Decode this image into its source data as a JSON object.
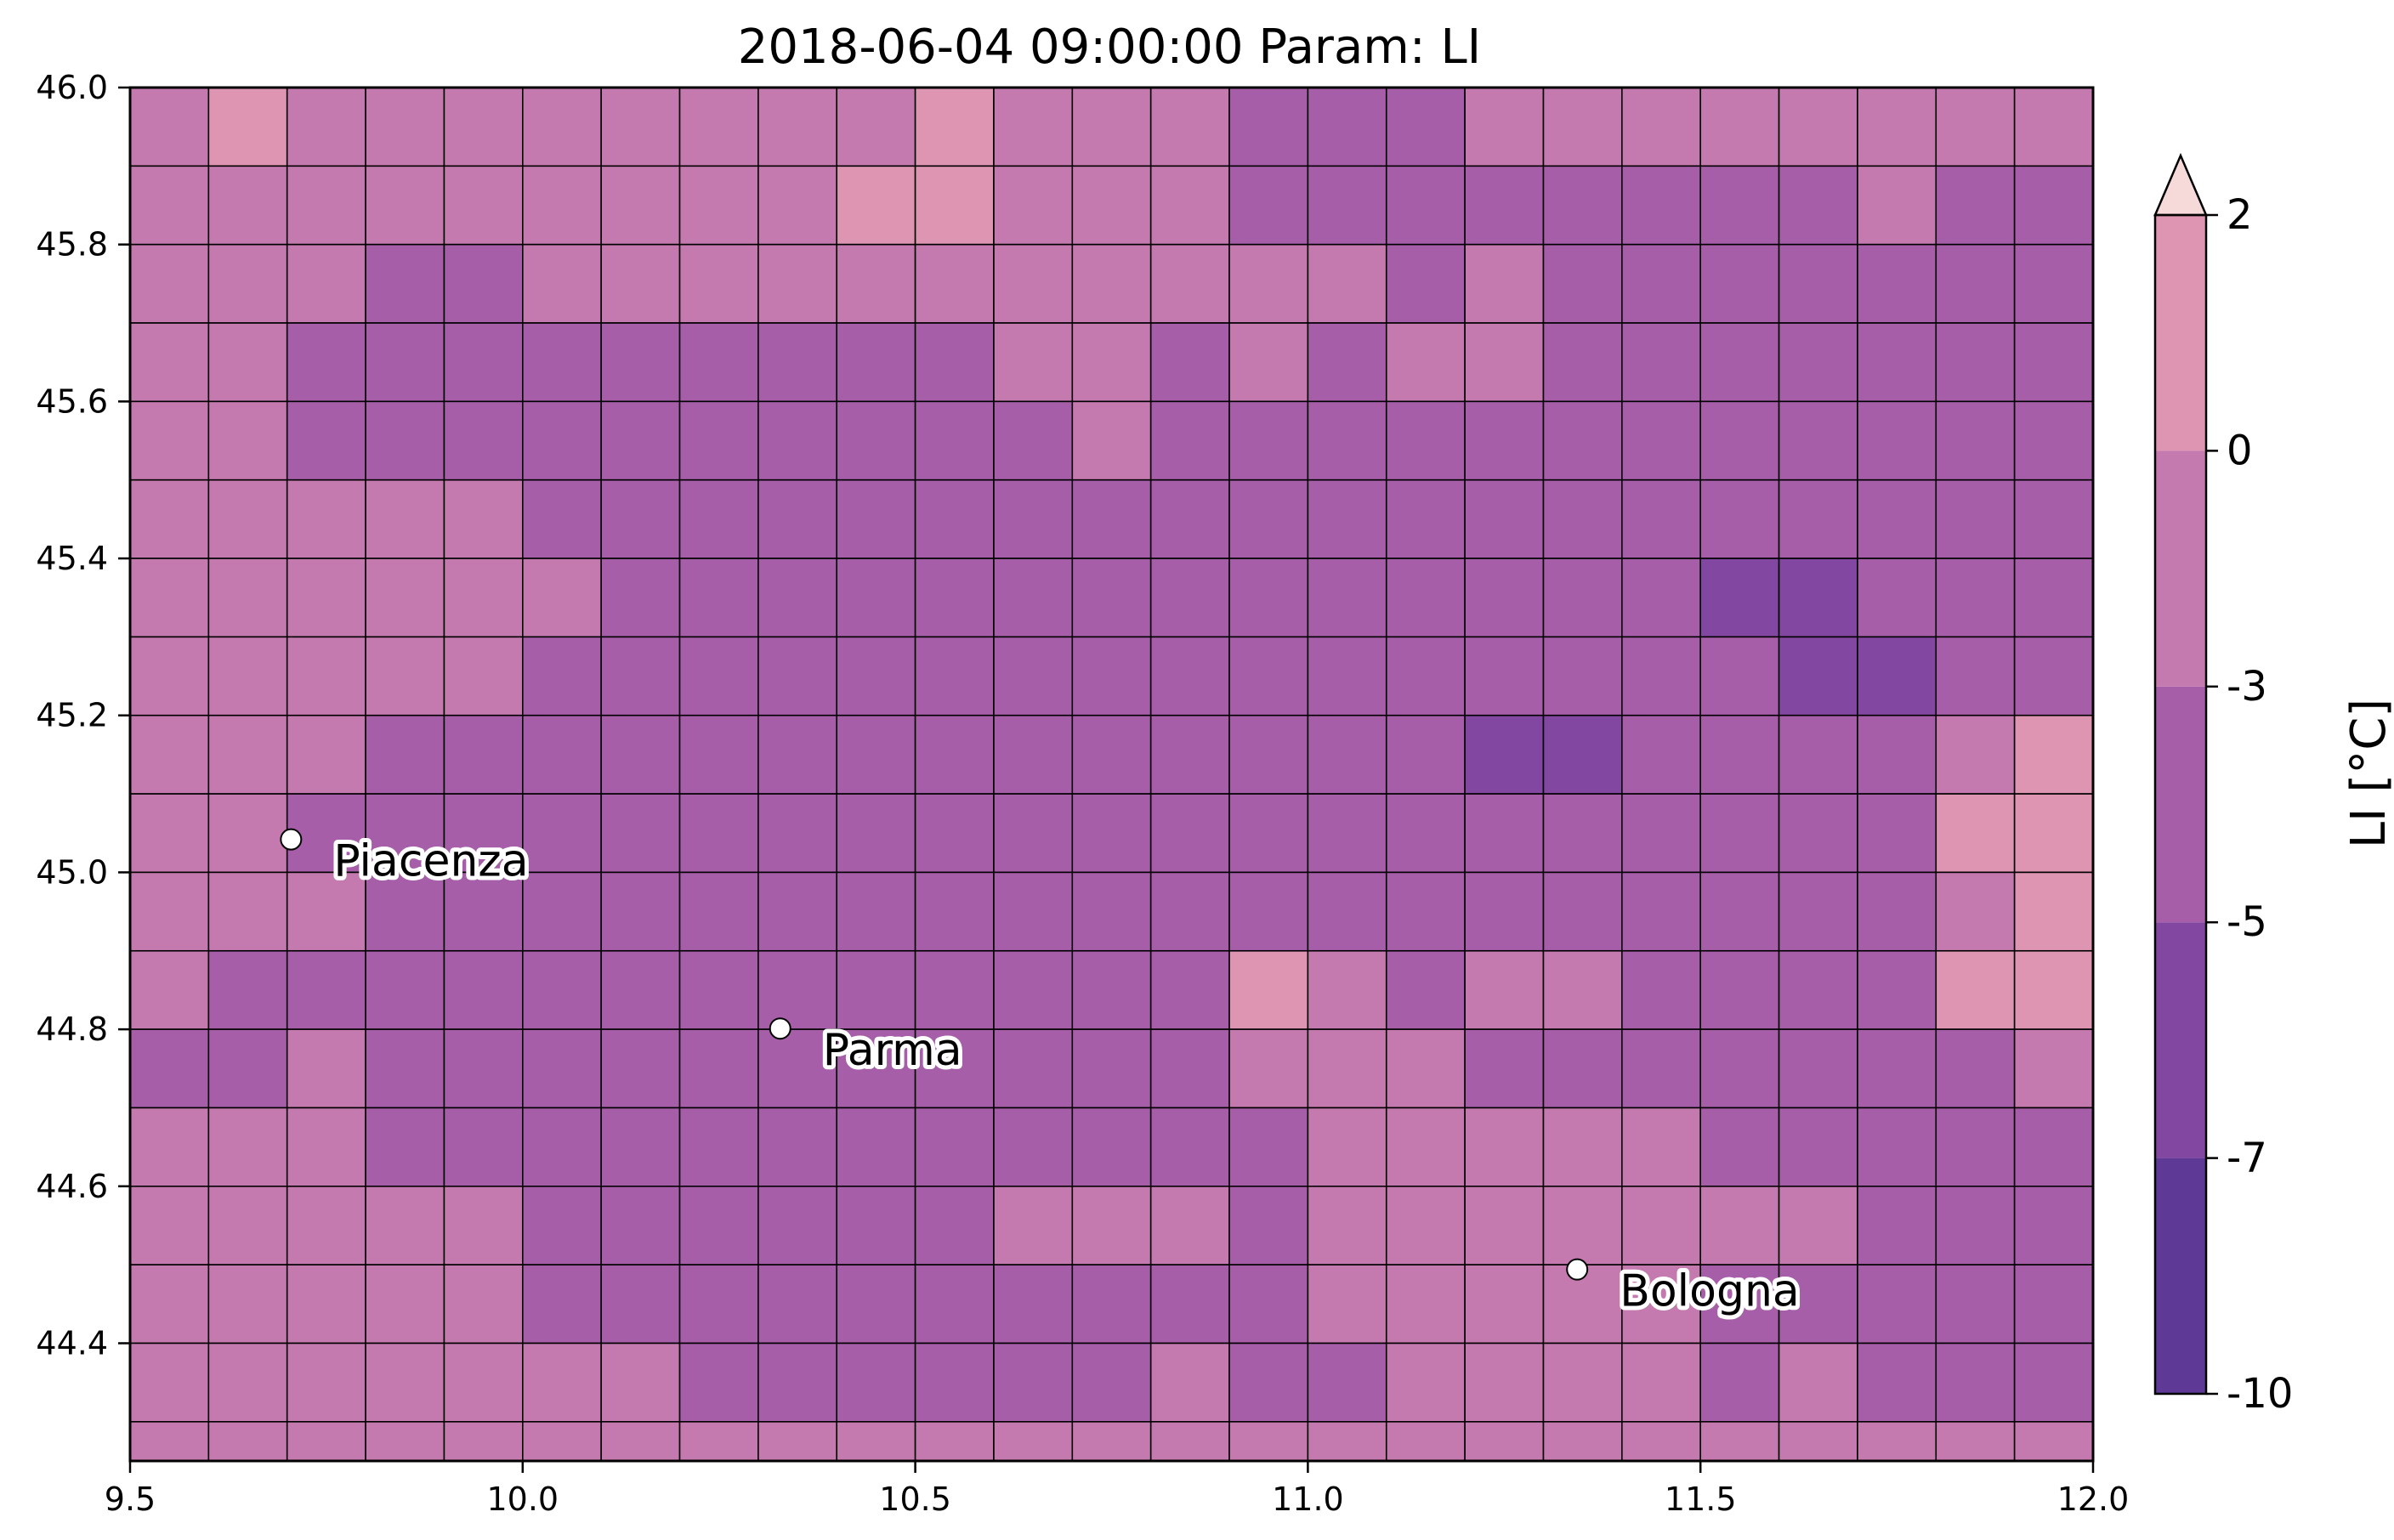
{
  "title": "2018-06-04 09:00:00 Param: LI",
  "colorbar": {
    "label": "LI [°C]",
    "levels": [
      -10,
      -7,
      -5,
      -3,
      0,
      2
    ],
    "colors": [
      "#5e3995",
      "#8247a0",
      "#a65ea8",
      "#c57aaf",
      "#dd95b2"
    ],
    "extend_max_color": "#f6dada",
    "extend": "max",
    "tick_labels": [
      "-10",
      "-7",
      "-5",
      "-3",
      "0",
      "2"
    ]
  },
  "chart_data": {
    "type": "heatmap",
    "title": "2018-06-04 09:00:00 Param: LI",
    "xlim": [
      9.5,
      12.0
    ],
    "ylim": [
      44.25,
      46.0
    ],
    "x_ticks": [
      9.5,
      10.0,
      10.5,
      11.0,
      11.5,
      12.0
    ],
    "x_tick_labels": [
      "9.5",
      "10.0",
      "10.5",
      "11.0",
      "11.5",
      "12.0"
    ],
    "y_ticks": [
      44.4,
      44.6,
      44.8,
      45.0,
      45.2,
      45.4,
      45.6,
      45.8,
      46.0
    ],
    "y_tick_labels": [
      "44.4",
      "44.6",
      "44.8",
      "45.0",
      "45.2",
      "45.4",
      "45.6",
      "45.8",
      "46.0"
    ],
    "grid_resolution_deg": 0.1,
    "lon_min": 9.5,
    "lat_max": 46.0,
    "values": [
      [
        -2.2,
        0.4,
        -2.1,
        -2.3,
        -2.2,
        -2.1,
        -2.0,
        -2.0,
        -2.0,
        -1.8,
        0.3,
        -2.0,
        -1.9,
        -2.1,
        -3.6,
        -3.7,
        -3.5,
        -1.9,
        -1.8,
        -2.0,
        -1.9,
        -2.0,
        -2.1,
        -2.2,
        -2.0
      ],
      [
        -2.0,
        -2.1,
        -2.2,
        -2.1,
        -2.0,
        -2.1,
        -1.9,
        -2.0,
        -2.0,
        0.6,
        0.5,
        -2.0,
        -2.1,
        -1.8,
        -3.5,
        -3.6,
        -3.7,
        -3.5,
        -3.6,
        -3.7,
        -3.6,
        -3.6,
        -2.1,
        -3.7,
        -3.8
      ],
      [
        -2.1,
        -2.2,
        -2.0,
        -3.6,
        -3.5,
        -2.1,
        -1.9,
        -2.1,
        -2.0,
        -2.0,
        -1.9,
        -2.1,
        -2.0,
        -2.2,
        -2.0,
        -1.8,
        -3.5,
        -1.9,
        -3.6,
        -3.7,
        -3.6,
        -3.8,
        -3.7,
        -3.6,
        -3.7
      ],
      [
        -2.2,
        -2.1,
        -3.4,
        -3.6,
        -4.2,
        -3.5,
        -3.7,
        -3.8,
        -3.6,
        -3.8,
        -3.5,
        -1.8,
        -1.9,
        -3.4,
        -1.9,
        -3.3,
        -1.8,
        -1.7,
        -3.6,
        -3.7,
        -3.5,
        -3.6,
        -3.7,
        -3.5,
        -3.6
      ],
      [
        -2.0,
        -2.1,
        -3.5,
        -3.7,
        -3.6,
        -3.8,
        -3.6,
        -3.7,
        -3.8,
        -4.3,
        -3.7,
        -3.6,
        -1.8,
        -3.5,
        -4.2,
        -4.3,
        -3.6,
        -3.5,
        -3.6,
        -3.7,
        -3.6,
        -4.3,
        -4.2,
        -4.4,
        -4.3
      ],
      [
        -2.1,
        -2.0,
        -1.9,
        -1.8,
        -1.9,
        -3.5,
        -4.3,
        -4.2,
        -3.6,
        -4.3,
        -3.8,
        -3.7,
        -3.6,
        -4.3,
        -4.3,
        -4.2,
        -3.6,
        -3.7,
        -3.6,
        -3.8,
        -4.3,
        -4.4,
        -4.2,
        -3.6,
        -3.7
      ],
      [
        -2.0,
        -2.1,
        -2.0,
        -1.9,
        -2.0,
        -1.8,
        -3.6,
        -4.3,
        -4.2,
        -3.7,
        -3.8,
        -4.3,
        -4.2,
        -4.3,
        -4.2,
        -3.7,
        -3.6,
        -3.7,
        -4.3,
        -4.4,
        -5.3,
        -5.3,
        -4.2,
        -4.3,
        -4.2
      ],
      [
        -2.1,
        -2.0,
        -2.1,
        -2.0,
        -1.9,
        -3.5,
        -3.6,
        -3.7,
        -3.8,
        -4.3,
        -4.4,
        -4.5,
        -4.4,
        -4.3,
        -4.3,
        -4.4,
        -4.2,
        -4.3,
        -4.4,
        -4.3,
        -4.2,
        -5.4,
        -5.3,
        -4.2,
        -3.7
      ],
      [
        -2.0,
        -2.1,
        -2.0,
        -3.6,
        -3.5,
        -3.6,
        -3.7,
        -3.8,
        -3.6,
        -4.3,
        -4.4,
        -4.3,
        -3.8,
        -4.2,
        -4.3,
        -4.4,
        -4.3,
        -5.3,
        -5.2,
        -4.3,
        -4.2,
        -4.3,
        -4.2,
        -1.7,
        0.5
      ],
      [
        -2.1,
        -2.0,
        -3.5,
        -3.6,
        -3.6,
        -3.7,
        -3.6,
        -3.7,
        -3.6,
        -4.3,
        -4.3,
        -4.4,
        -4.2,
        -4.3,
        -4.3,
        -4.2,
        -4.3,
        -4.3,
        -4.4,
        -4.3,
        -4.2,
        -4.4,
        -4.3,
        0.4,
        0.8
      ],
      [
        -2.0,
        -2.1,
        -2.0,
        -3.6,
        -3.7,
        -3.6,
        -3.7,
        -3.6,
        -3.7,
        -4.3,
        -4.2,
        -4.3,
        -3.6,
        -3.7,
        -3.6,
        -3.7,
        -3.6,
        -3.7,
        -3.8,
        -4.3,
        -4.3,
        -4.2,
        -4.3,
        -1.9,
        0.3
      ],
      [
        -2.1,
        -3.5,
        -3.6,
        -3.7,
        -3.6,
        -3.7,
        -3.6,
        -4.3,
        -4.2,
        -4.3,
        -4.3,
        -3.7,
        -3.6,
        -3.7,
        0.5,
        -1.9,
        -3.6,
        -1.9,
        -2.0,
        -3.6,
        -4.2,
        -4.3,
        -3.7,
        0.4,
        0.3
      ],
      [
        -3.6,
        -3.5,
        -2.0,
        -3.6,
        -3.7,
        -3.6,
        -3.7,
        -3.6,
        -3.7,
        -3.6,
        -3.7,
        -3.6,
        -3.7,
        -3.6,
        -1.9,
        -2.0,
        -1.9,
        -3.6,
        -3.7,
        -3.6,
        -3.7,
        -3.6,
        -4.3,
        -3.6,
        -2.0
      ],
      [
        -2.0,
        -2.1,
        -2.0,
        -3.6,
        -3.7,
        -3.6,
        -3.7,
        -3.6,
        -3.7,
        -3.6,
        -3.7,
        -3.6,
        -3.7,
        -3.6,
        -3.5,
        -1.9,
        -2.0,
        -1.9,
        -2.0,
        -1.9,
        -3.6,
        -3.7,
        -3.6,
        -3.7,
        -4.3
      ],
      [
        -2.1,
        -2.0,
        -2.1,
        -2.0,
        -1.9,
        -3.6,
        -3.7,
        -3.6,
        -3.7,
        -3.6,
        -3.7,
        -2.0,
        -1.9,
        -2.0,
        -3.6,
        -2.0,
        -1.9,
        -2.0,
        -1.9,
        -2.0,
        -1.9,
        -2.0,
        -3.6,
        -3.7,
        -3.6
      ],
      [
        -2.0,
        -2.1,
        -2.0,
        -2.1,
        -2.0,
        -3.6,
        -3.7,
        -3.6,
        -3.7,
        -3.6,
        -3.7,
        -3.6,
        -3.7,
        -3.6,
        -3.7,
        -2.0,
        -1.9,
        -2.0,
        -1.9,
        -2.0,
        -3.6,
        -3.7,
        -3.6,
        -3.7,
        -3.6
      ],
      [
        -2.1,
        -2.0,
        -2.1,
        -2.0,
        -1.9,
        -2.0,
        -1.9,
        -3.6,
        -3.7,
        -3.6,
        -3.7,
        -3.6,
        -3.7,
        -2.0,
        -3.6,
        -3.7,
        -2.0,
        -1.9,
        -2.0,
        -1.9,
        -3.6,
        -2.0,
        -3.6,
        -3.7,
        -3.6
      ],
      [
        -2.0,
        -2.1,
        -2.0,
        -1.9,
        -2.0,
        -2.1,
        -2.0,
        -2.1,
        -2.0,
        -2.1,
        -2.0,
        -2.1,
        -2.0,
        -2.1,
        -2.0,
        -2.1,
        -2.0,
        -2.1,
        -2.0,
        -2.1,
        -2.0,
        -2.1,
        -2.0,
        -2.1,
        -2.0
      ]
    ],
    "points": [
      {
        "name": "Piacenza",
        "lon": 9.705,
        "lat": 45.042
      },
      {
        "name": "Parma",
        "lon": 10.328,
        "lat": 44.801
      },
      {
        "name": "Bologna",
        "lon": 11.343,
        "lat": 44.494
      }
    ]
  }
}
